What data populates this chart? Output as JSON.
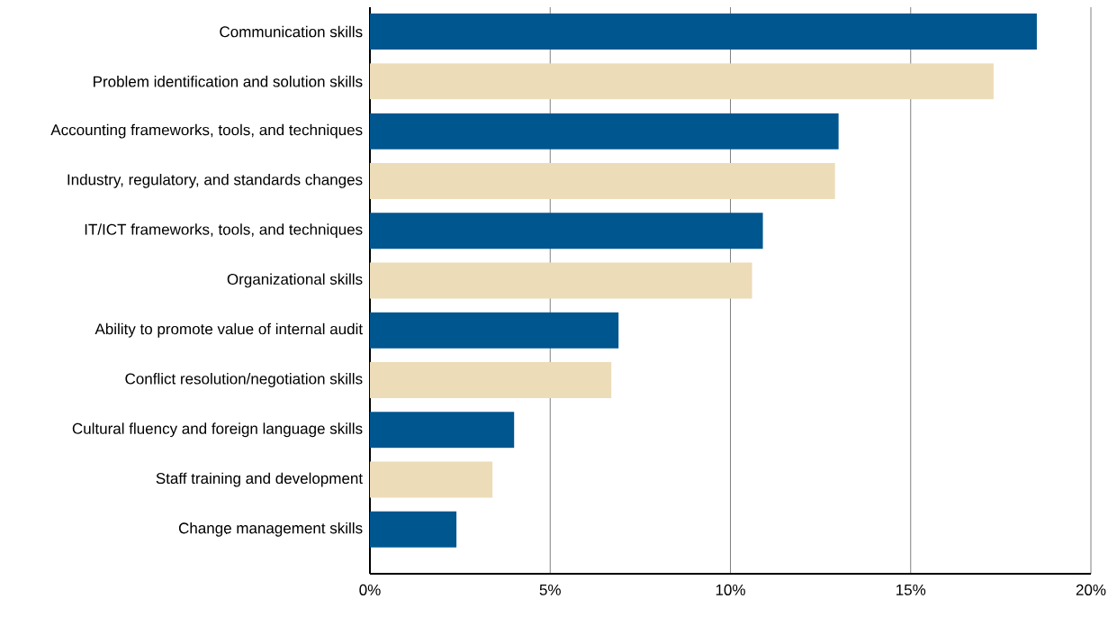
{
  "chart_data": {
    "type": "bar",
    "orientation": "horizontal",
    "categories": [
      "Communication skills",
      "Problem identification and solution skills",
      "Accounting frameworks, tools, and techniques",
      "Industry, regulatory, and standards changes",
      "IT/ICT frameworks, tools, and techniques",
      "Organizational skills",
      "Ability to promote value of internal audit",
      "Conflict resolution/negotiation skills",
      "Cultural fluency and foreign language skills",
      "Staff training and development",
      "Change management skills"
    ],
    "values": [
      18.5,
      17.3,
      13.0,
      12.9,
      10.9,
      10.6,
      6.9,
      6.7,
      4.0,
      3.4,
      2.4
    ],
    "colors": [
      "#00568f",
      "#ecdcb8",
      "#00568f",
      "#ecdcb8",
      "#00568f",
      "#ecdcb8",
      "#00568f",
      "#ecdcb8",
      "#00568f",
      "#ecdcb8",
      "#00568f"
    ],
    "xlim": [
      0,
      20
    ],
    "xticks": [
      {
        "value": 0,
        "label": "0%"
      },
      {
        "value": 5,
        "label": "5%"
      },
      {
        "value": 10,
        "label": "10%"
      },
      {
        "value": 15,
        "label": "15%"
      },
      {
        "value": 20,
        "label": "20%"
      }
    ],
    "grid": "x"
  }
}
